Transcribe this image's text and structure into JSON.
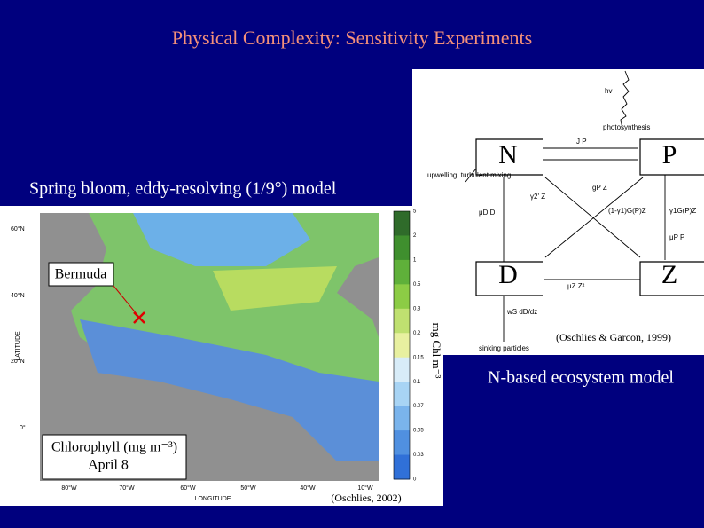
{
  "title": "Physical Complexity: Sensitivity Experiments",
  "left": {
    "caption": "Spring bloom, eddy-resolving (1/9°) model",
    "map": {
      "marker": "Bermuda",
      "legend_title": "Chlorophyll (mg m⁻³)",
      "legend_date": "April 8",
      "colorbar_label": "mg Chl m⁻³",
      "colorbar_ticks": [
        "5",
        "2",
        "1",
        "0.5",
        "0.3",
        "0.2",
        "0.15",
        "0.1",
        "0.07",
        "0.05",
        "0.03",
        "0"
      ],
      "lat_ticks": [
        "60°N",
        "40°N",
        "20°N",
        "0°"
      ],
      "lon_ticks": [
        "80°W",
        "70°W",
        "60°W",
        "50°W",
        "40°W",
        "10°W"
      ],
      "y_axis": "LATITUDE",
      "x_axis": "LONGITUDE"
    },
    "citation": "(Oschlies, 2002)"
  },
  "right": {
    "diagram": {
      "nodes": [
        "N",
        "P",
        "D",
        "Z"
      ],
      "labels": [
        "hv",
        "photosynthesis",
        "J P",
        "upwelling, turbulent mixing",
        "γ2' Z",
        "gP Z",
        "μD D",
        "(1-γ1)G(P)Z",
        "γ1G(P)Z",
        "μP P",
        "μZ Z²",
        "wS dD/dz",
        "sinking particles"
      ],
      "citation": "(Oschlies & Garcon, 1999)"
    },
    "caption": "N-based ecosystem model"
  }
}
